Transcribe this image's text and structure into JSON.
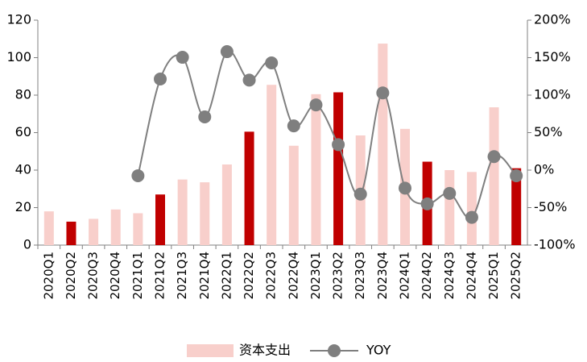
{
  "chart_data": {
    "type": "bar-line",
    "categories": [
      "2020Q1",
      "2020Q2",
      "2020Q3",
      "2020Q4",
      "2021Q1",
      "2021Q2",
      "2021Q3",
      "2021Q4",
      "2022Q1",
      "2022Q2",
      "2022Q3",
      "2022Q4",
      "2023Q1",
      "2023Q2",
      "2023Q3",
      "2023Q4",
      "2024Q1",
      "2024Q2",
      "2024Q3",
      "2024Q4",
      "2025Q1",
      "2025Q2"
    ],
    "series": [
      {
        "name": "资本支出",
        "type": "bar",
        "color": "#f8cfcb",
        "bar_colors": [
          "#f8cfcb",
          "#c00000",
          "#f8cfcb",
          "#f8cfcb",
          "#f8cfcb",
          "#c00000",
          "#f8cfcb",
          "#f8cfcb",
          "#f8cfcb",
          "#c00000",
          "#f8cfcb",
          "#f8cfcb",
          "#f8cfcb",
          "#c00000",
          "#f8cfcb",
          "#f8cfcb",
          "#f8cfcb",
          "#c00000",
          "#f8cfcb",
          "#f8cfcb",
          "#f8cfcb",
          "#c00000"
        ],
        "values": [
          18,
          12.5,
          14,
          19,
          17,
          27,
          35,
          33.5,
          43,
          60.5,
          85.5,
          53,
          80.5,
          81.5,
          58.5,
          107.5,
          62,
          44.5,
          40,
          39,
          73.5,
          41
        ]
      },
      {
        "name": "YOY",
        "type": "line",
        "axis": "y2",
        "color": "#7f7f7f",
        "values": [
          null,
          null,
          null,
          null,
          -7.5,
          121.5,
          150.5,
          71,
          158,
          120,
          143,
          59,
          87,
          34,
          -32,
          103,
          -24,
          -45,
          -31,
          -63,
          18,
          -7.5
        ]
      }
    ],
    "ylim": [
      0,
      120
    ],
    "yticks": [
      0,
      20,
      40,
      60,
      80,
      100,
      120
    ],
    "y2lim": [
      -100,
      200
    ],
    "y2ticks": [
      {
        "value": -100,
        "label": "-100%"
      },
      {
        "value": -50,
        "label": "-50%"
      },
      {
        "value": 0,
        "label": "0%"
      },
      {
        "value": 50,
        "label": "50%"
      },
      {
        "value": 100,
        "label": "100%"
      },
      {
        "value": 150,
        "label": "150%"
      },
      {
        "value": 200,
        "label": "200%"
      }
    ],
    "legend": "bottom"
  }
}
